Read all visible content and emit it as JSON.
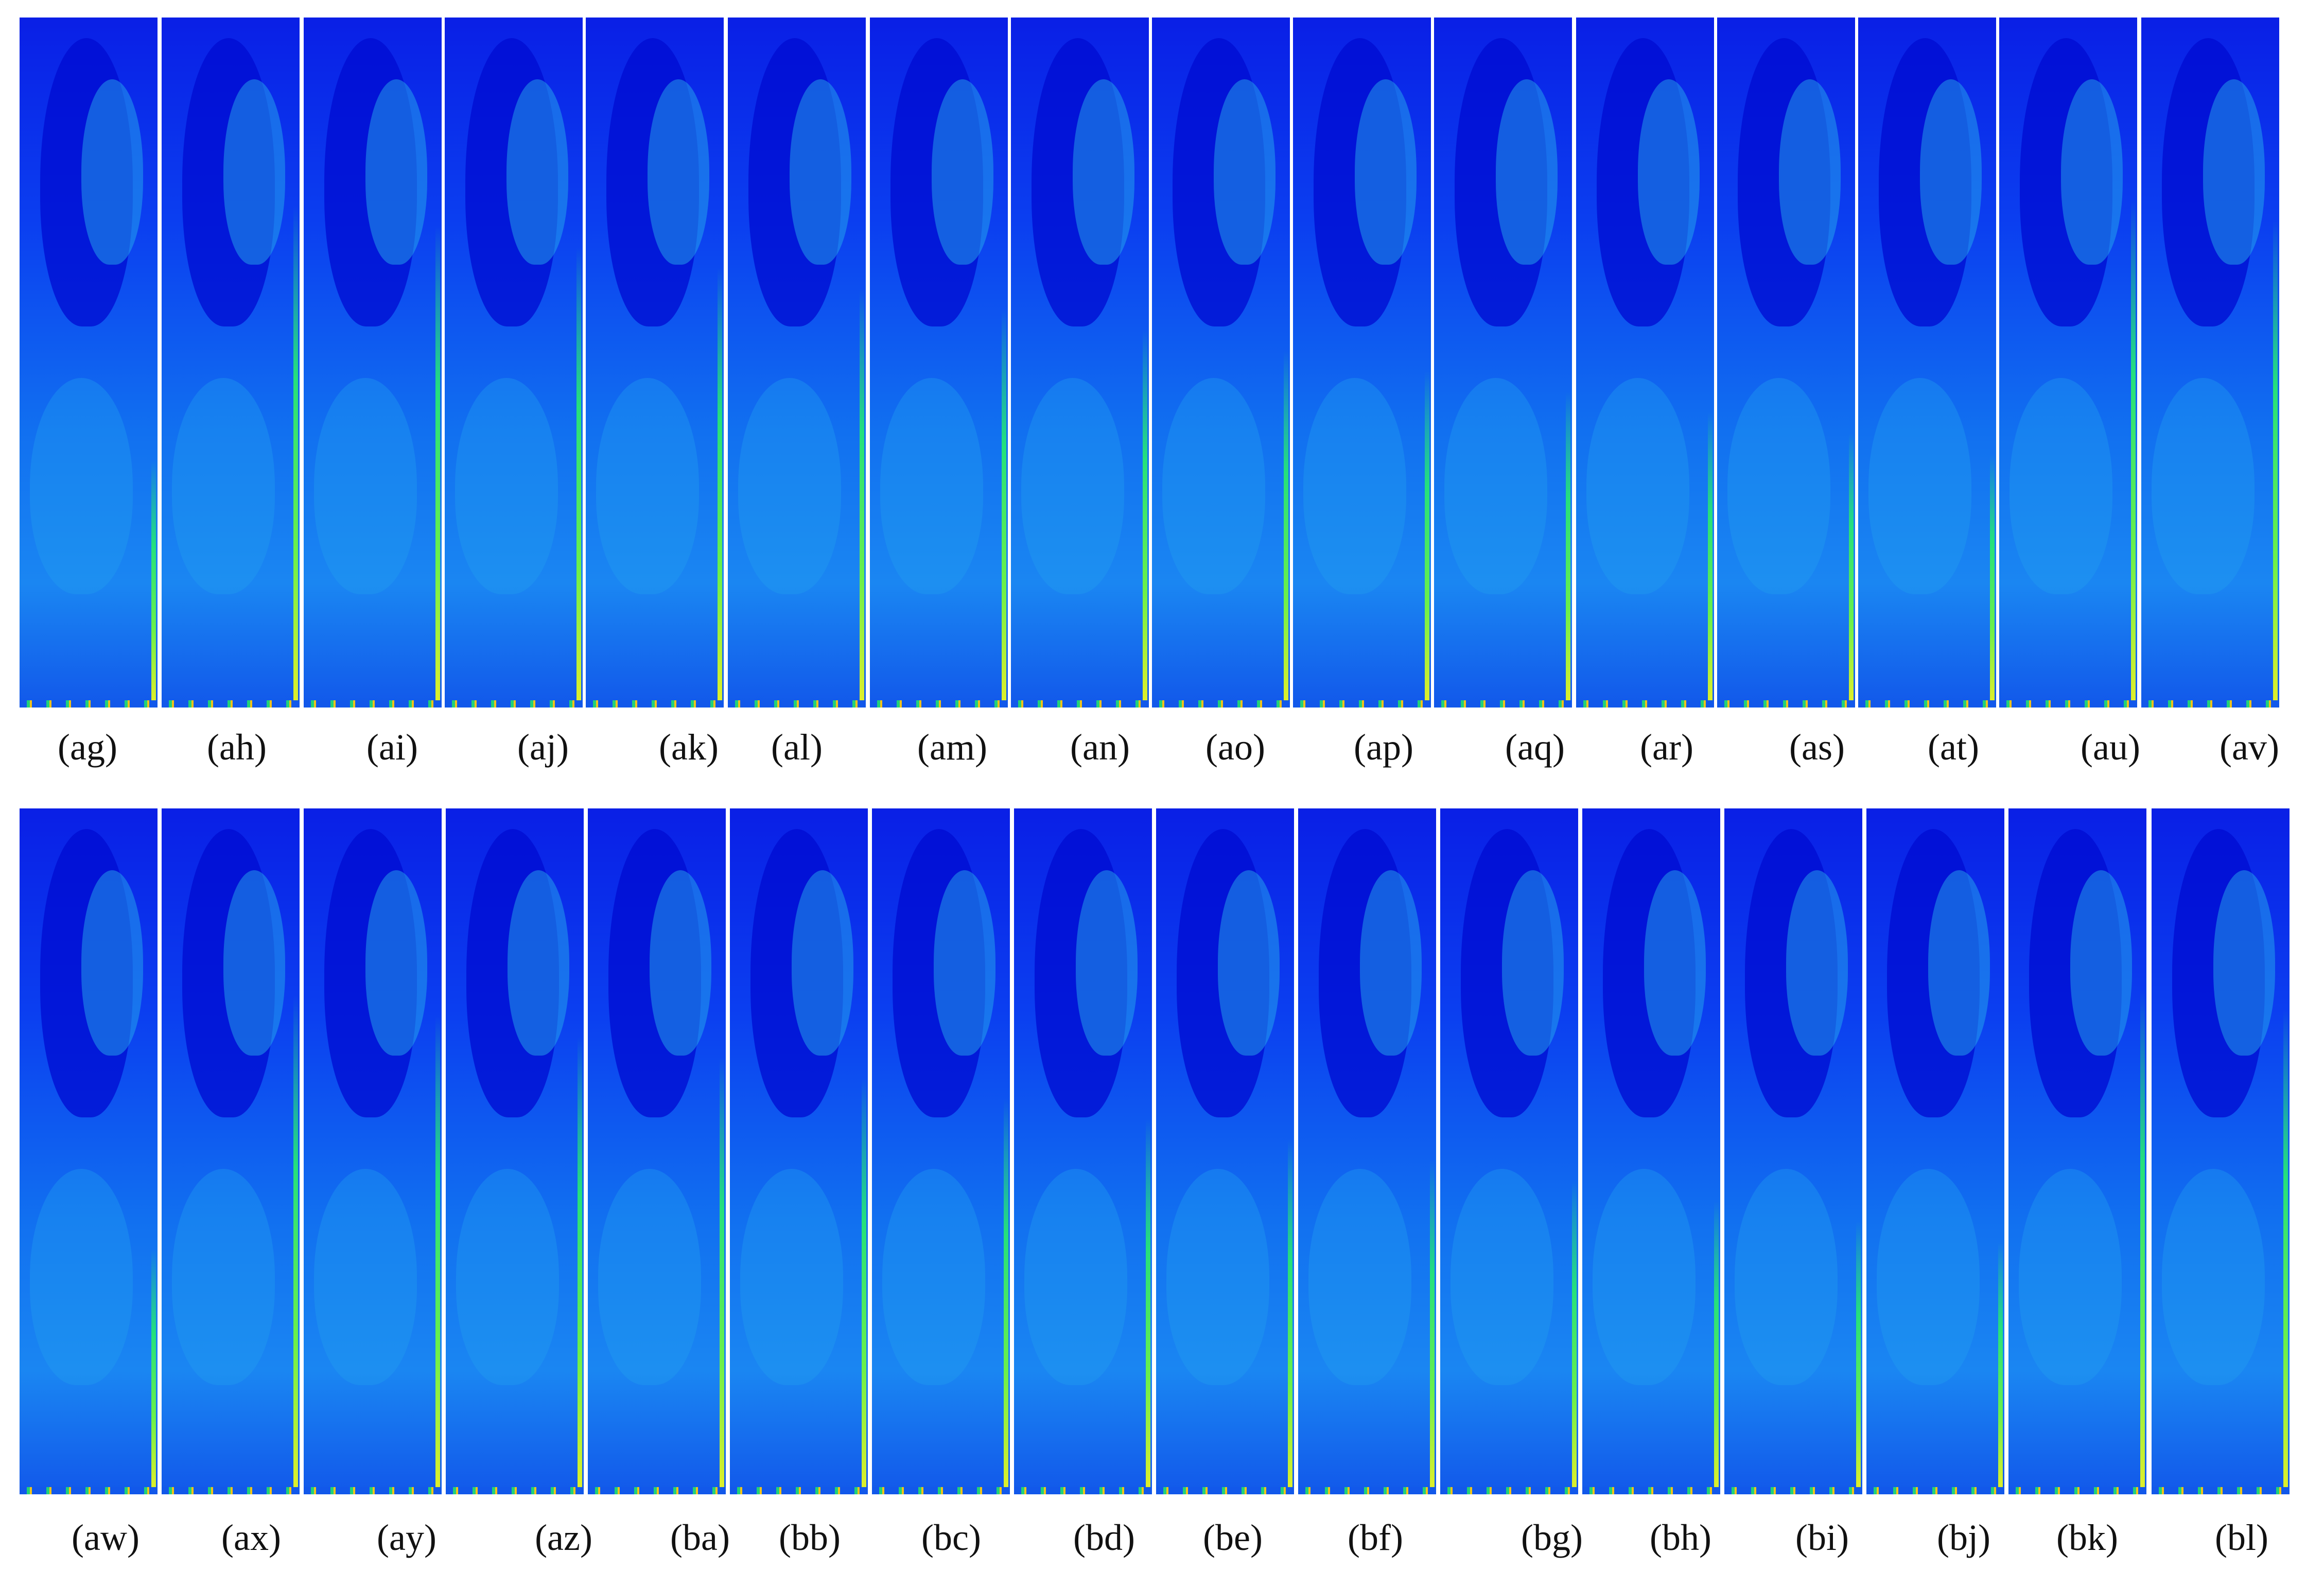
{
  "rows": [
    {
      "panels": [
        "(ag)",
        "(ah)",
        "(ai)",
        "(aj)",
        "(ak)",
        "(al)",
        "(am)",
        "(an)",
        "(ao)",
        "(ap)",
        "(aq)",
        "(ar)",
        "(as)",
        "(at)",
        "(au)",
        "(av)"
      ]
    },
    {
      "panels": [
        "(aw)",
        "(ax)",
        "(ay)",
        "(az)",
        "(ba)",
        "(bb)",
        "(bc)",
        "(bd)",
        "(be)",
        "(bf)",
        "(bg)",
        "(bh)",
        "(bi)",
        "(bj)",
        "(bk)",
        "(bl)"
      ]
    }
  ],
  "colors": {
    "background": "#ffffff",
    "field_low": "#0a1fe6",
    "field_mid": "#1a86f2",
    "plume": "#25e07c",
    "hot": "#f2c31b",
    "label": "#111111"
  }
}
